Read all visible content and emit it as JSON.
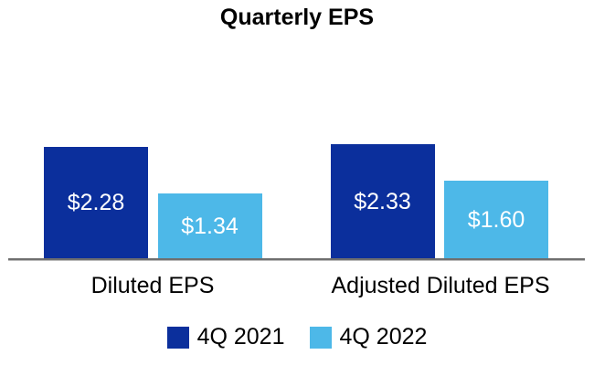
{
  "chart_data": {
    "type": "bar",
    "title": "Quarterly EPS",
    "categories": [
      "Diluted EPS",
      "Adjusted Diluted EPS"
    ],
    "series": [
      {
        "name": "4Q 2021",
        "color": "#0B2F9C",
        "values": [
          2.28,
          2.33
        ],
        "labels": [
          "$2.28",
          "$2.33"
        ]
      },
      {
        "name": "4Q 2022",
        "color": "#4DB8E8",
        "values": [
          1.34,
          1.6
        ],
        "labels": [
          "$1.34",
          "$1.60"
        ]
      }
    ],
    "ylim": [
      0,
      2.6
    ],
    "grid": false,
    "axes_shown": false,
    "legend_position": "bottom",
    "value_label_color": "#FFFFFF",
    "axis_line_color": "#6F6F6F",
    "background_color": "#FFFFFF"
  }
}
